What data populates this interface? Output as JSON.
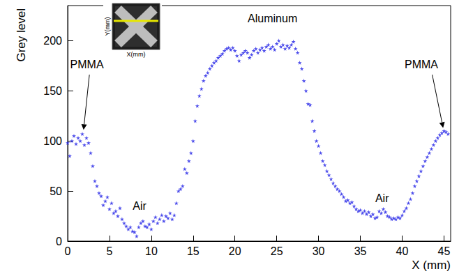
{
  "chart_data": {
    "type": "scatter",
    "x_label": "X (mm)",
    "y_label": "Grey level",
    "color": "#1f1fe6",
    "marker": "star",
    "grid": false,
    "xlim": [
      0,
      45.8
    ],
    "ylim": [
      0,
      235
    ],
    "xticks": [
      0,
      5,
      10,
      15,
      20,
      25,
      30,
      35,
      40,
      45
    ],
    "yticks": [
      0,
      50,
      100,
      150,
      200
    ],
    "annotations": [
      "PMMA",
      "Air",
      "Aluminum",
      "Air",
      "PMMA"
    ],
    "inset": {
      "x_label": "X(mm)",
      "y_label": "Y(mm)"
    },
    "x": [
      0,
      0.25,
      0.5,
      0.75,
      1,
      1.25,
      1.5,
      1.75,
      2,
      2.25,
      2.5,
      2.75,
      3,
      3.25,
      3.5,
      3.75,
      4,
      4.25,
      4.5,
      4.75,
      5,
      5.25,
      5.5,
      5.75,
      6,
      6.25,
      6.5,
      6.75,
      7,
      7.25,
      7.5,
      7.75,
      8,
      8.25,
      8.5,
      8.75,
      9,
      9.25,
      9.5,
      9.75,
      10,
      10.25,
      10.5,
      10.75,
      11,
      11.25,
      11.5,
      11.75,
      12,
      12.25,
      12.5,
      12.75,
      13,
      13.25,
      13.5,
      13.75,
      14,
      14.25,
      14.5,
      14.75,
      15,
      15.25,
      15.5,
      15.75,
      16,
      16.25,
      16.5,
      16.75,
      17,
      17.25,
      17.5,
      17.75,
      18,
      18.25,
      18.5,
      18.75,
      19,
      19.25,
      19.5,
      19.75,
      20,
      20.25,
      20.5,
      20.75,
      21,
      21.25,
      21.5,
      21.75,
      22,
      22.25,
      22.5,
      22.75,
      23,
      23.25,
      23.5,
      23.75,
      24,
      24.25,
      24.5,
      24.75,
      25,
      25.25,
      25.5,
      25.75,
      26,
      26.25,
      26.5,
      26.75,
      27,
      27.25,
      27.5,
      27.75,
      28,
      28.25,
      28.5,
      28.75,
      29,
      29.25,
      29.5,
      29.75,
      30,
      30.25,
      30.5,
      30.75,
      31,
      31.25,
      31.5,
      31.75,
      32,
      32.25,
      32.5,
      32.75,
      33,
      33.25,
      33.5,
      33.75,
      34,
      34.25,
      34.5,
      34.75,
      35,
      35.25,
      35.5,
      35.75,
      36,
      36.25,
      36.5,
      36.75,
      37,
      37.25,
      37.5,
      37.75,
      38,
      38.25,
      38.5,
      38.75,
      39,
      39.25,
      39.5,
      39.75,
      40,
      40.25,
      40.5,
      40.75,
      41,
      41.25,
      41.5,
      41.75,
      42,
      42.25,
      42.5,
      42.75,
      43,
      43.25,
      43.5,
      43.75,
      44,
      44.25,
      44.5,
      44.75,
      45,
      45.25,
      45.5
    ],
    "values": [
      98,
      85,
      100,
      105,
      97,
      103,
      100,
      107,
      96,
      103,
      98,
      88,
      75,
      60,
      55,
      48,
      45,
      36,
      40,
      44,
      32,
      38,
      28,
      30,
      25,
      33,
      22,
      18,
      15,
      12,
      14,
      10,
      9,
      5,
      14,
      18,
      20,
      15,
      14,
      17,
      12,
      20,
      24,
      18,
      22,
      26,
      20,
      25,
      23,
      28,
      22,
      26,
      38,
      50,
      52,
      55,
      72,
      68,
      80,
      88,
      100,
      120,
      135,
      145,
      152,
      160,
      165,
      168,
      172,
      175,
      178,
      180,
      183,
      185,
      187,
      190,
      192,
      193,
      191,
      193,
      190,
      185,
      180,
      186,
      188,
      190,
      188,
      183,
      186,
      190,
      192,
      188,
      191,
      193,
      190,
      194,
      196,
      192,
      194,
      191,
      197,
      200,
      194,
      196,
      192,
      195,
      193,
      196,
      199,
      192,
      188,
      178,
      172,
      160,
      150,
      137,
      136,
      120,
      110,
      100,
      95,
      88,
      80,
      76,
      70,
      66,
      62,
      58,
      55,
      52,
      50,
      47,
      44,
      40,
      41,
      38,
      39,
      35,
      32,
      30,
      31,
      28,
      30,
      27,
      29,
      25,
      27,
      23,
      24,
      30,
      28,
      32,
      29,
      25,
      24,
      22,
      23,
      22,
      24,
      23,
      26,
      30,
      33,
      38,
      42,
      48,
      55,
      60,
      65,
      70,
      75,
      80,
      84,
      88,
      92,
      96,
      100,
      103,
      106,
      108,
      110,
      109,
      107
    ]
  }
}
